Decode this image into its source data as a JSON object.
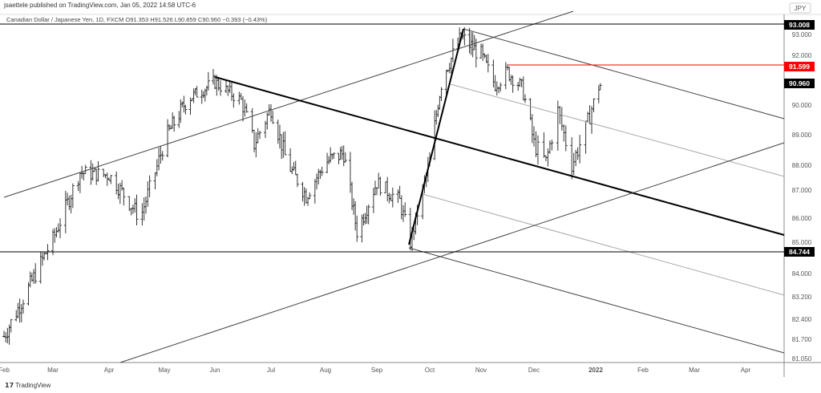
{
  "header": {
    "published": "jsaettele published on TradingView.com, Jan 05, 2022 14:58 UTC-6",
    "symbol_line": "Canadian Dollar / Japanese Yen, 1D, FXCM  O91.353  H91.526  L90.859  C90.960  −0.393 (−0.43%)"
  },
  "footer": {
    "brand": "TradingView"
  },
  "colors": {
    "bars": "#333333",
    "drawing": "#000000",
    "light_line": "#aaaaaa",
    "resistance": "#ff0000"
  },
  "chart_data": {
    "type": "ohlc-bar",
    "currency": "JPY",
    "x_ticks": [
      "Feb",
      "Mar",
      "Apr",
      "May",
      "Jun",
      "Jul",
      "Aug",
      "Sep",
      "Oct",
      "Nov",
      "Dec",
      "2022",
      "Feb",
      "Mar",
      "Apr"
    ],
    "y_ticks": [
      "93.000",
      "92.000",
      "90.000",
      "89.000",
      "88.000",
      "87.000",
      "86.000",
      "85.000",
      "84.000",
      "83.200",
      "82.400",
      "81.700",
      "81.050"
    ],
    "price_labels": [
      {
        "text": "93.008",
        "price": 93.0,
        "color": "#000000"
      },
      {
        "text": "91.599",
        "price": 91.599,
        "color": "#ff0000"
      },
      {
        "text": "90.960",
        "price": 90.96,
        "color": "#000000"
      },
      {
        "text": "84.744",
        "price": 84.744,
        "color": "#000000"
      }
    ],
    "close_path": [
      [
        "2021-02-01",
        81.8
      ],
      [
        "2021-03-01",
        85.2
      ],
      [
        "2021-03-16",
        87.7
      ],
      [
        "2021-04-01",
        87.6
      ],
      [
        "2021-04-18",
        86.0
      ],
      [
        "2021-05-01",
        88.8
      ],
      [
        "2021-05-16",
        90.3
      ],
      [
        "2021-06-01",
        91.0
      ],
      [
        "2021-06-15",
        90.2
      ],
      [
        "2021-06-22",
        88.7
      ],
      [
        "2021-07-01",
        89.9
      ],
      [
        "2021-07-10",
        88.1
      ],
      [
        "2021-07-21",
        86.8
      ],
      [
        "2021-08-01",
        88.1
      ],
      [
        "2021-08-12",
        88.4
      ],
      [
        "2021-08-20",
        85.5
      ],
      [
        "2021-09-01",
        87.3
      ],
      [
        "2021-09-14",
        86.6
      ],
      [
        "2021-09-20",
        85.1
      ],
      [
        "2021-10-01",
        88.1
      ],
      [
        "2021-10-09",
        91.3
      ],
      [
        "2021-10-20",
        92.6
      ],
      [
        "2021-11-01",
        92.0
      ],
      [
        "2021-11-09",
        90.9
      ],
      [
        "2021-11-16",
        91.4
      ],
      [
        "2021-11-24",
        90.8
      ],
      [
        "2021-12-01",
        88.7
      ],
      [
        "2021-12-07",
        88.1
      ],
      [
        "2021-12-13",
        89.8
      ],
      [
        "2021-12-20",
        88.0
      ],
      [
        "2021-12-27",
        89.2
      ],
      [
        "2022-01-03",
        90.8
      ],
      [
        "2022-01-05",
        90.96
      ]
    ]
  }
}
